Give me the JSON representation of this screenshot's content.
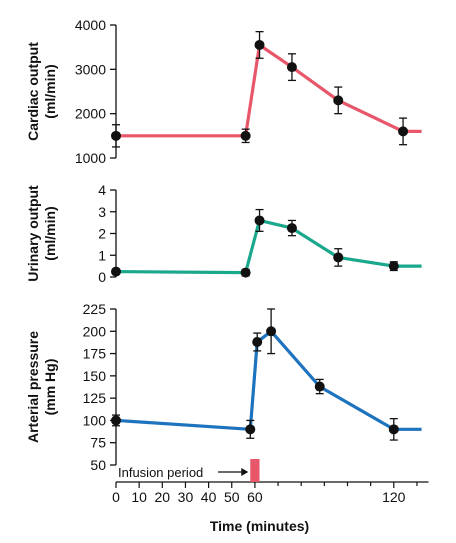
{
  "chart_data": [
    {
      "type": "line",
      "ylabel": "Cardiac output (ml/min)",
      "ylim": [
        1000,
        4000
      ],
      "yticks": [
        1000,
        2000,
        3000,
        4000
      ],
      "color": "#e8566a",
      "x": [
        0,
        56,
        62,
        76,
        96,
        124
      ],
      "values": [
        1500,
        1500,
        3550,
        3050,
        2300,
        1600
      ],
      "errors": [
        250,
        150,
        300,
        300,
        300,
        300
      ],
      "line_end": {
        "x": 132,
        "y": 1600
      }
    },
    {
      "type": "line",
      "ylabel": "Urinary output (ml/min)",
      "ylim": [
        0,
        4
      ],
      "yticks": [
        0,
        1,
        2,
        3,
        4
      ],
      "color": "#1aa88c",
      "x": [
        0,
        56,
        62,
        76,
        96,
        120
      ],
      "values": [
        0.25,
        0.2,
        2.6,
        2.25,
        0.9,
        0.5
      ],
      "errors": [
        0.1,
        0.15,
        0.5,
        0.35,
        0.4,
        0.2
      ],
      "line_end": {
        "x": 132,
        "y": 0.5
      }
    },
    {
      "type": "line",
      "ylabel": "Arterial pressure (mm Hg)",
      "ylim": [
        50,
        225
      ],
      "yticks": [
        50,
        75,
        100,
        125,
        150,
        175,
        200,
        225
      ],
      "color": "#1e73be",
      "x": [
        0,
        58,
        61,
        67,
        88,
        120
      ],
      "values": [
        100,
        90,
        188,
        200,
        138,
        90
      ],
      "errors": [
        6,
        10,
        10,
        25,
        8,
        12
      ],
      "line_end": {
        "x": 132,
        "y": 90
      }
    }
  ],
  "x_axis": {
    "xlabel": "Time (minutes)",
    "xlim": [
      0,
      135
    ],
    "ticks": [
      0,
      10,
      20,
      30,
      40,
      50,
      60,
      120
    ],
    "tick_labels": [
      "0",
      "10",
      "20",
      "30",
      "40",
      "50",
      "60",
      "120"
    ]
  },
  "infusion": {
    "label": "Infusion period",
    "start": 58,
    "end": 62,
    "color": "#e8566a"
  }
}
